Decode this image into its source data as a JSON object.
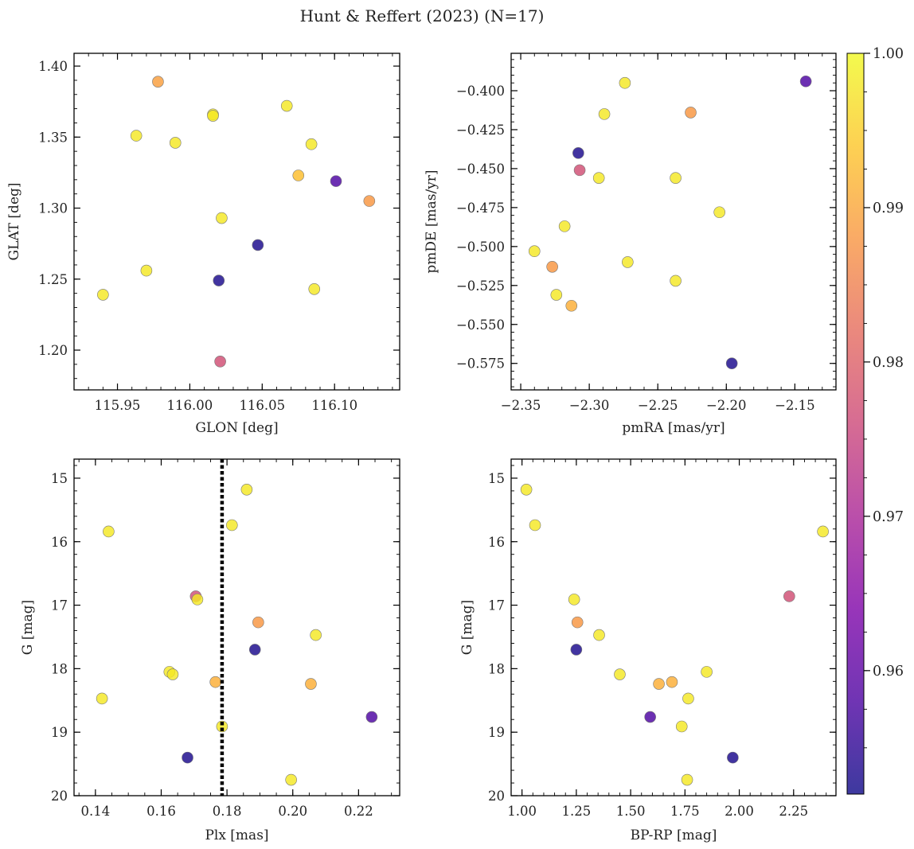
{
  "figure": {
    "title": "Hunt & Reffert (2023) (N=17)"
  },
  "colorbar": {
    "cmap": "plasma",
    "min": 0.952,
    "max": 1.0,
    "ticks": [
      0.96,
      0.97,
      0.98,
      0.99,
      1.0
    ],
    "tick_labels": [
      "0.96",
      "0.97",
      "0.98",
      "0.99",
      "1.00"
    ]
  },
  "chart_data": [
    {
      "type": "scatter",
      "id": "sky",
      "xlabel": "GLON [deg]",
      "ylabel": "GLAT [deg]",
      "xlim": [
        115.92,
        116.145
      ],
      "ylim": [
        1.172,
        1.409
      ],
      "y_inverted": false,
      "xticks": [
        115.95,
        116.0,
        116.05,
        116.1
      ],
      "xtick_labels": [
        "115.95",
        "116.00",
        "116.05",
        "116.10"
      ],
      "yticks": [
        1.2,
        1.25,
        1.3,
        1.35,
        1.4
      ],
      "ytick_labels": [
        "1.20",
        "1.25",
        "1.30",
        "1.35",
        "1.40"
      ],
      "points": [
        {
          "x": 115.94,
          "y": 1.239,
          "c": 0.998
        },
        {
          "x": 115.963,
          "y": 1.351,
          "c": 0.998
        },
        {
          "x": 115.97,
          "y": 1.256,
          "c": 0.998
        },
        {
          "x": 115.978,
          "y": 1.389,
          "c": 0.989
        },
        {
          "x": 115.99,
          "y": 1.346,
          "c": 0.998
        },
        {
          "x": 116.016,
          "y": 1.366,
          "c": 0.998
        },
        {
          "x": 116.016,
          "y": 1.365,
          "c": 0.998
        },
        {
          "x": 116.02,
          "y": 1.249,
          "c": 0.953
        },
        {
          "x": 116.021,
          "y": 1.192,
          "c": 0.977
        },
        {
          "x": 116.022,
          "y": 1.293,
          "c": 0.998
        },
        {
          "x": 116.047,
          "y": 1.274,
          "c": 0.953
        },
        {
          "x": 116.067,
          "y": 1.372,
          "c": 0.998
        },
        {
          "x": 116.075,
          "y": 1.323,
          "c": 0.993
        },
        {
          "x": 116.084,
          "y": 1.345,
          "c": 0.998
        },
        {
          "x": 116.086,
          "y": 1.243,
          "c": 0.998
        },
        {
          "x": 116.101,
          "y": 1.319,
          "c": 0.958
        },
        {
          "x": 116.124,
          "y": 1.305,
          "c": 0.988
        }
      ]
    },
    {
      "type": "scatter",
      "id": "pm",
      "xlabel": "pmRA [mas/yr]",
      "ylabel": "pmDE [mas/yr]",
      "xlim": [
        -2.357,
        -2.12
      ],
      "ylim": [
        -0.592,
        -0.376
      ],
      "y_inverted": false,
      "xticks": [
        -2.35,
        -2.3,
        -2.25,
        -2.2,
        -2.15
      ],
      "xtick_labels": [
        "−2.35",
        "−2.30",
        "−2.25",
        "−2.20",
        "−2.15"
      ],
      "yticks": [
        -0.575,
        -0.55,
        -0.525,
        -0.5,
        -0.475,
        -0.45,
        -0.425,
        -0.4
      ],
      "ytick_labels": [
        "−0.575",
        "−0.550",
        "−0.525",
        "−0.500",
        "−0.475",
        "−0.450",
        "−0.425",
        "−0.400"
      ],
      "points": [
        {
          "x": -2.34,
          "y": -0.503,
          "c": 0.998
        },
        {
          "x": -2.327,
          "y": -0.513,
          "c": 0.988
        },
        {
          "x": -2.324,
          "y": -0.531,
          "c": 0.998
        },
        {
          "x": -2.318,
          "y": -0.487,
          "c": 0.998
        },
        {
          "x": -2.313,
          "y": -0.538,
          "c": 0.991
        },
        {
          "x": -2.308,
          "y": -0.44,
          "c": 0.953
        },
        {
          "x": -2.307,
          "y": -0.451,
          "c": 0.977
        },
        {
          "x": -2.293,
          "y": -0.456,
          "c": 0.998
        },
        {
          "x": -2.289,
          "y": -0.415,
          "c": 0.998
        },
        {
          "x": -2.274,
          "y": -0.395,
          "c": 0.998
        },
        {
          "x": -2.272,
          "y": -0.51,
          "c": 0.998
        },
        {
          "x": -2.237,
          "y": -0.456,
          "c": 0.998
        },
        {
          "x": -2.237,
          "y": -0.522,
          "c": 0.998
        },
        {
          "x": -2.226,
          "y": -0.414,
          "c": 0.988
        },
        {
          "x": -2.205,
          "y": -0.478,
          "c": 0.998
        },
        {
          "x": -2.196,
          "y": -0.575,
          "c": 0.953
        },
        {
          "x": -2.142,
          "y": -0.394,
          "c": 0.958
        }
      ]
    },
    {
      "type": "scatter",
      "id": "plx",
      "xlabel": "Plx [mas]",
      "ylabel": "G [mag]",
      "xlim": [
        0.1335,
        0.2325
      ],
      "ylim": [
        20.0,
        14.7
      ],
      "y_inverted": true,
      "xticks": [
        0.14,
        0.16,
        0.18,
        0.2,
        0.22
      ],
      "xtick_labels": [
        "0.14",
        "0.16",
        "0.18",
        "0.20",
        "0.22"
      ],
      "yticks": [
        15,
        16,
        17,
        18,
        19,
        20
      ],
      "ytick_labels": [
        "15",
        "16",
        "17",
        "18",
        "19",
        "20"
      ],
      "vline": {
        "x": 0.1785,
        "style": "dotted",
        "color": "#000000"
      },
      "points": [
        {
          "x": 0.142,
          "y": 18.47,
          "c": 0.998
        },
        {
          "x": 0.144,
          "y": 15.84,
          "c": 0.998
        },
        {
          "x": 0.1625,
          "y": 18.05,
          "c": 0.998
        },
        {
          "x": 0.1635,
          "y": 18.09,
          "c": 0.998
        },
        {
          "x": 0.168,
          "y": 19.4,
          "c": 0.953
        },
        {
          "x": 0.1705,
          "y": 16.86,
          "c": 0.977
        },
        {
          "x": 0.171,
          "y": 16.91,
          "c": 0.998
        },
        {
          "x": 0.1765,
          "y": 18.21,
          "c": 0.991
        },
        {
          "x": 0.1785,
          "y": 18.91,
          "c": 0.998
        },
        {
          "x": 0.1815,
          "y": 15.74,
          "c": 0.998
        },
        {
          "x": 0.186,
          "y": 15.18,
          "c": 0.998
        },
        {
          "x": 0.1885,
          "y": 17.7,
          "c": 0.953
        },
        {
          "x": 0.1895,
          "y": 17.27,
          "c": 0.988
        },
        {
          "x": 0.1995,
          "y": 19.75,
          "c": 0.998
        },
        {
          "x": 0.2055,
          "y": 18.24,
          "c": 0.991
        },
        {
          "x": 0.207,
          "y": 17.47,
          "c": 0.998
        },
        {
          "x": 0.224,
          "y": 18.76,
          "c": 0.958
        }
      ]
    },
    {
      "type": "scatter",
      "id": "cmd",
      "xlabel": "BP-RP [mag]",
      "ylabel": "G [mag]",
      "xlim": [
        0.95,
        2.445
      ],
      "ylim": [
        20.0,
        14.7
      ],
      "y_inverted": true,
      "xticks": [
        1.0,
        1.25,
        1.5,
        1.75,
        2.0,
        2.25
      ],
      "xtick_labels": [
        "1.00",
        "1.25",
        "1.50",
        "1.75",
        "2.00",
        "2.25"
      ],
      "yticks": [
        15,
        16,
        17,
        18,
        19,
        20
      ],
      "ytick_labels": [
        "15",
        "16",
        "17",
        "18",
        "19",
        "20"
      ],
      "points": [
        {
          "x": 1.02,
          "y": 15.18,
          "c": 0.998
        },
        {
          "x": 1.06,
          "y": 15.74,
          "c": 0.998
        },
        {
          "x": 1.24,
          "y": 16.91,
          "c": 0.998
        },
        {
          "x": 1.255,
          "y": 17.27,
          "c": 0.988
        },
        {
          "x": 1.25,
          "y": 17.7,
          "c": 0.953
        },
        {
          "x": 1.355,
          "y": 17.47,
          "c": 0.998
        },
        {
          "x": 1.45,
          "y": 18.09,
          "c": 0.998
        },
        {
          "x": 1.59,
          "y": 18.76,
          "c": 0.958
        },
        {
          "x": 1.63,
          "y": 18.24,
          "c": 0.991
        },
        {
          "x": 1.69,
          "y": 18.21,
          "c": 0.991
        },
        {
          "x": 1.735,
          "y": 18.91,
          "c": 0.998
        },
        {
          "x": 1.76,
          "y": 19.75,
          "c": 0.998
        },
        {
          "x": 1.765,
          "y": 18.47,
          "c": 0.998
        },
        {
          "x": 1.85,
          "y": 18.05,
          "c": 0.998
        },
        {
          "x": 1.97,
          "y": 19.4,
          "c": 0.953
        },
        {
          "x": 2.23,
          "y": 16.86,
          "c": 0.977
        },
        {
          "x": 2.385,
          "y": 15.84,
          "c": 0.998
        }
      ]
    }
  ]
}
